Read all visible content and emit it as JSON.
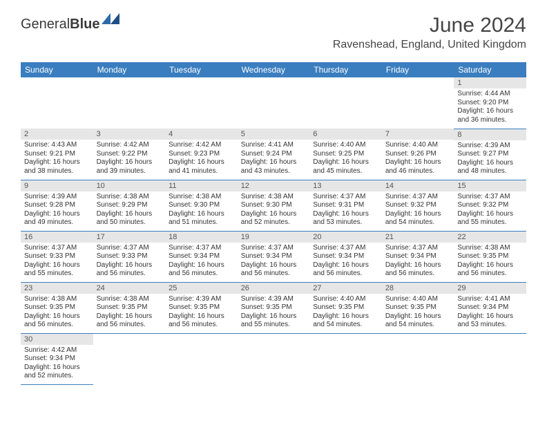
{
  "logo": {
    "part1": "General",
    "part2": "Blue"
  },
  "title": "June 2024",
  "location": "Ravenshead, England, United Kingdom",
  "colors": {
    "header_bg": "#3a7ebf",
    "header_fg": "#ffffff",
    "daynum_bg": "#e6e6e6",
    "row_divider": "#3a7ebf",
    "text": "#333333",
    "logo_accent": "#2f6aa8"
  },
  "weekdays": [
    "Sunday",
    "Monday",
    "Tuesday",
    "Wednesday",
    "Thursday",
    "Friday",
    "Saturday"
  ],
  "weeks": [
    [
      null,
      null,
      null,
      null,
      null,
      null,
      {
        "n": "1",
        "sunrise": "4:44 AM",
        "sunset": "9:20 PM",
        "dlh": "16",
        "dlm": "36"
      }
    ],
    [
      {
        "n": "2",
        "sunrise": "4:43 AM",
        "sunset": "9:21 PM",
        "dlh": "16",
        "dlm": "38"
      },
      {
        "n": "3",
        "sunrise": "4:42 AM",
        "sunset": "9:22 PM",
        "dlh": "16",
        "dlm": "39"
      },
      {
        "n": "4",
        "sunrise": "4:42 AM",
        "sunset": "9:23 PM",
        "dlh": "16",
        "dlm": "41"
      },
      {
        "n": "5",
        "sunrise": "4:41 AM",
        "sunset": "9:24 PM",
        "dlh": "16",
        "dlm": "43"
      },
      {
        "n": "6",
        "sunrise": "4:40 AM",
        "sunset": "9:25 PM",
        "dlh": "16",
        "dlm": "45"
      },
      {
        "n": "7",
        "sunrise": "4:40 AM",
        "sunset": "9:26 PM",
        "dlh": "16",
        "dlm": "46"
      },
      {
        "n": "8",
        "sunrise": "4:39 AM",
        "sunset": "9:27 PM",
        "dlh": "16",
        "dlm": "48"
      }
    ],
    [
      {
        "n": "9",
        "sunrise": "4:39 AM",
        "sunset": "9:28 PM",
        "dlh": "16",
        "dlm": "49"
      },
      {
        "n": "10",
        "sunrise": "4:38 AM",
        "sunset": "9:29 PM",
        "dlh": "16",
        "dlm": "50"
      },
      {
        "n": "11",
        "sunrise": "4:38 AM",
        "sunset": "9:30 PM",
        "dlh": "16",
        "dlm": "51"
      },
      {
        "n": "12",
        "sunrise": "4:38 AM",
        "sunset": "9:30 PM",
        "dlh": "16",
        "dlm": "52"
      },
      {
        "n": "13",
        "sunrise": "4:37 AM",
        "sunset": "9:31 PM",
        "dlh": "16",
        "dlm": "53"
      },
      {
        "n": "14",
        "sunrise": "4:37 AM",
        "sunset": "9:32 PM",
        "dlh": "16",
        "dlm": "54"
      },
      {
        "n": "15",
        "sunrise": "4:37 AM",
        "sunset": "9:32 PM",
        "dlh": "16",
        "dlm": "55"
      }
    ],
    [
      {
        "n": "16",
        "sunrise": "4:37 AM",
        "sunset": "9:33 PM",
        "dlh": "16",
        "dlm": "55"
      },
      {
        "n": "17",
        "sunrise": "4:37 AM",
        "sunset": "9:33 PM",
        "dlh": "16",
        "dlm": "56"
      },
      {
        "n": "18",
        "sunrise": "4:37 AM",
        "sunset": "9:34 PM",
        "dlh": "16",
        "dlm": "56"
      },
      {
        "n": "19",
        "sunrise": "4:37 AM",
        "sunset": "9:34 PM",
        "dlh": "16",
        "dlm": "56"
      },
      {
        "n": "20",
        "sunrise": "4:37 AM",
        "sunset": "9:34 PM",
        "dlh": "16",
        "dlm": "56"
      },
      {
        "n": "21",
        "sunrise": "4:37 AM",
        "sunset": "9:34 PM",
        "dlh": "16",
        "dlm": "56"
      },
      {
        "n": "22",
        "sunrise": "4:38 AM",
        "sunset": "9:35 PM",
        "dlh": "16",
        "dlm": "56"
      }
    ],
    [
      {
        "n": "23",
        "sunrise": "4:38 AM",
        "sunset": "9:35 PM",
        "dlh": "16",
        "dlm": "56"
      },
      {
        "n": "24",
        "sunrise": "4:38 AM",
        "sunset": "9:35 PM",
        "dlh": "16",
        "dlm": "56"
      },
      {
        "n": "25",
        "sunrise": "4:39 AM",
        "sunset": "9:35 PM",
        "dlh": "16",
        "dlm": "56"
      },
      {
        "n": "26",
        "sunrise": "4:39 AM",
        "sunset": "9:35 PM",
        "dlh": "16",
        "dlm": "55"
      },
      {
        "n": "27",
        "sunrise": "4:40 AM",
        "sunset": "9:35 PM",
        "dlh": "16",
        "dlm": "54"
      },
      {
        "n": "28",
        "sunrise": "4:40 AM",
        "sunset": "9:35 PM",
        "dlh": "16",
        "dlm": "54"
      },
      {
        "n": "29",
        "sunrise": "4:41 AM",
        "sunset": "9:34 PM",
        "dlh": "16",
        "dlm": "53"
      }
    ],
    [
      {
        "n": "30",
        "sunrise": "4:42 AM",
        "sunset": "9:34 PM",
        "dlh": "16",
        "dlm": "52"
      },
      null,
      null,
      null,
      null,
      null,
      null
    ]
  ],
  "labels": {
    "sunrise": "Sunrise:",
    "sunset": "Sunset:",
    "daylight_prefix": "Daylight:",
    "hours_word": "hours",
    "and_word": "and",
    "minutes_word": "minutes."
  }
}
